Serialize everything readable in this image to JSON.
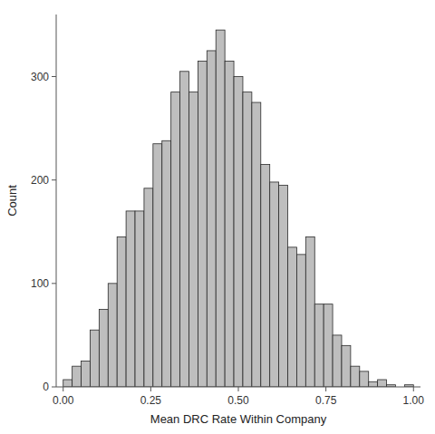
{
  "chart_data": {
    "type": "histogram",
    "xlabel": "Mean DRC Rate Within Company",
    "ylabel": "Count",
    "bins": [
      0,
      0.025641,
      0.051282,
      0.076923,
      0.102564,
      0.128205,
      0.153846,
      0.179487,
      0.205128,
      0.230769,
      0.25641,
      0.282051,
      0.307692,
      0.333333,
      0.358974,
      0.384615,
      0.410256,
      0.435897,
      0.461538,
      0.487179,
      0.512821,
      0.538462,
      0.564103,
      0.589744,
      0.615385,
      0.641026,
      0.666667,
      0.692308,
      0.717949,
      0.74359,
      0.769231,
      0.794872,
      0.820513,
      0.846154,
      0.871795,
      0.897436,
      0.923077,
      0.948718,
      0.974359,
      1.0
    ],
    "values": [
      7,
      20,
      25,
      55,
      75,
      100,
      145,
      170,
      170,
      192,
      235,
      238,
      285,
      305,
      285,
      315,
      325,
      345,
      315,
      300,
      285,
      275,
      215,
      198,
      195,
      135,
      128,
      145,
      80,
      80,
      50,
      40,
      20,
      15,
      5,
      7,
      2,
      0,
      2
    ],
    "color": "#bebebe",
    "xlim": [
      -0.02,
      1.02
    ],
    "ylim": [
      0,
      360
    ],
    "xticks": [
      {
        "value": 0.0,
        "label": "0.00"
      },
      {
        "value": 0.25,
        "label": "0.25"
      },
      {
        "value": 0.5,
        "label": "0.50"
      },
      {
        "value": 0.75,
        "label": "0.75"
      },
      {
        "value": 1.0,
        "label": "1.00"
      }
    ],
    "yticks": [
      0,
      100,
      200,
      300
    ],
    "grid": false
  }
}
